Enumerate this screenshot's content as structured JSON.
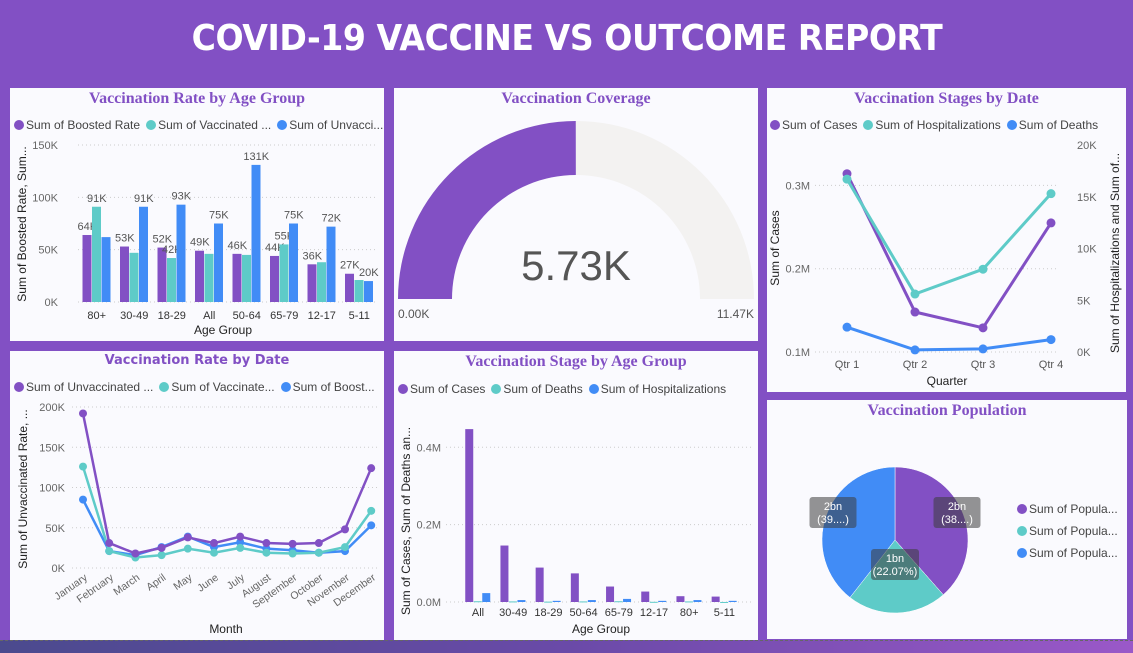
{
  "header": {
    "title": "COVID-19 VACCINE VS OUTCOME REPORT"
  },
  "colors": {
    "purple": "#8250c4",
    "teal": "#5ecbc8",
    "blue": "#418cf6",
    "track": "#f3f2f1",
    "background": "#8250c4"
  },
  "chart_data": [
    {
      "id": "rate-by-age",
      "type": "bar",
      "title": "Vaccination Rate by Age Group",
      "xlabel": "Age Group",
      "ylabel": "Sum of Boosted Rate, Sum...",
      "ylim": [
        0,
        150000
      ],
      "yticks": [
        "0K",
        "50K",
        "100K",
        "150K"
      ],
      "categories": [
        "80+",
        "30-49",
        "18-29",
        "All",
        "50-64",
        "65-79",
        "12-17",
        "5-11"
      ],
      "legend": [
        "Sum of Boosted Rate",
        "Sum of Vaccinated ...",
        "Sum of Unvacci..."
      ],
      "series": [
        {
          "name": "Sum of Boosted Rate",
          "color": "#8250c4",
          "values": [
            64000,
            53000,
            52000,
            49000,
            46000,
            44000,
            36000,
            27000
          ],
          "labels": [
            "64K",
            "53K",
            "52K",
            "49K",
            "46K",
            "44K",
            "36K",
            "27K"
          ]
        },
        {
          "name": "Sum of Vaccinated Rate",
          "color": "#5ecbc8",
          "values": [
            91000,
            47000,
            42000,
            46000,
            45000,
            55000,
            38000,
            21000
          ],
          "labels": [
            "91K",
            "",
            "42K",
            "",
            "",
            "55K",
            "",
            ""
          ]
        },
        {
          "name": "Sum of Unvaccinated Rate",
          "color": "#418cf6",
          "values": [
            62000,
            91000,
            93000,
            75000,
            131000,
            75000,
            72000,
            20000
          ],
          "labels": [
            "",
            "91K",
            "93K",
            "75K",
            "131K",
            "75K",
            "72K",
            "20K"
          ]
        }
      ]
    },
    {
      "id": "coverage-gauge",
      "type": "gauge",
      "title": "Vaccination Coverage",
      "value": 5730,
      "value_label": "5.73K",
      "min": 0,
      "max": 11470,
      "min_label": "0.00K",
      "max_label": "11.47K"
    },
    {
      "id": "stages-by-date",
      "type": "line",
      "title": "Vaccination Stages by Date",
      "xlabel": "Quarter",
      "ylabel": "Sum of Cases",
      "y2label": "Sum of Hospitalizations and Sum of...",
      "categories": [
        "Qtr 1",
        "Qtr 2",
        "Qtr 3",
        "Qtr 4"
      ],
      "ylim": [
        100000,
        350000
      ],
      "yticks": [
        "0.1M",
        "0.2M",
        "0.3M"
      ],
      "y2lim": [
        0,
        20000
      ],
      "y2ticks": [
        "0K",
        "5K",
        "10K",
        "15K",
        "20K"
      ],
      "legend": [
        "Sum of Cases",
        "Sum of Hospitalizations",
        "Sum of Deaths"
      ],
      "series": [
        {
          "name": "Sum of Cases",
          "axis": "left",
          "color": "#8250c4",
          "values": [
            314000,
            148000,
            129000,
            255000
          ]
        },
        {
          "name": "Sum of Hospitalizations",
          "axis": "right",
          "color": "#5ecbc8",
          "values": [
            16700,
            5600,
            8000,
            15300
          ]
        },
        {
          "name": "Sum of Deaths",
          "axis": "right",
          "color": "#418cf6",
          "values": [
            2400,
            200,
            300,
            1200
          ]
        }
      ]
    },
    {
      "id": "rate-by-date",
      "type": "line",
      "title": "Vaccination Rate by Date",
      "xlabel": "Month",
      "ylabel": "Sum of Unvaccinated Rate, ...",
      "ylim": [
        0,
        200000
      ],
      "yticks": [
        "0K",
        "50K",
        "100K",
        "150K",
        "200K"
      ],
      "categories": [
        "January",
        "February",
        "March",
        "April",
        "May",
        "June",
        "July",
        "August",
        "September",
        "October",
        "November",
        "December"
      ],
      "legend": [
        "Sum of Unvaccinated ...",
        "Sum of Vaccinate...",
        "Sum of Boost..."
      ],
      "series": [
        {
          "name": "Sum of Unvaccinated Rate",
          "color": "#8250c4",
          "values": [
            192000,
            31000,
            18000,
            25000,
            38000,
            31000,
            39000,
            31000,
            30000,
            31000,
            48000,
            124000
          ]
        },
        {
          "name": "Sum of Vaccinated Rate",
          "color": "#5ecbc8",
          "values": [
            126000,
            21000,
            13000,
            16000,
            24000,
            19000,
            25000,
            19000,
            18000,
            19000,
            26000,
            71000
          ]
        },
        {
          "name": "Sum of Boosted Rate",
          "color": "#418cf6",
          "values": [
            85000,
            21000,
            16000,
            26000,
            39000,
            26000,
            32000,
            24000,
            22000,
            19000,
            21000,
            53000
          ]
        }
      ]
    },
    {
      "id": "stage-by-age",
      "type": "bar",
      "title": "Vaccination Stage by Age Group",
      "xlabel": "Age Group",
      "ylabel": "Sum of Cases, Sum of Deaths an...",
      "ylim": [
        0,
        470000
      ],
      "yticks": [
        "0.0M",
        "0.2M",
        "0.4M"
      ],
      "categories": [
        "All",
        "30-49",
        "18-29",
        "50-64",
        "65-79",
        "12-17",
        "80+",
        "5-11"
      ],
      "legend": [
        "Sum of Cases",
        "Sum of Deaths",
        "Sum of Hospitalizations"
      ],
      "series": [
        {
          "name": "Sum of Cases",
          "color": "#8250c4",
          "values": [
            447000,
            146000,
            89000,
            74000,
            40000,
            27000,
            15000,
            14000
          ]
        },
        {
          "name": "Sum of Deaths",
          "color": "#5ecbc8",
          "values": [
            2000,
            1500,
            1000,
            1500,
            2000,
            500,
            1500,
            100
          ]
        },
        {
          "name": "Sum of Hospitalizations",
          "color": "#418cf6",
          "values": [
            23000,
            5000,
            3000,
            5000,
            8000,
            3000,
            5000,
            3000
          ]
        }
      ]
    },
    {
      "id": "population-pie",
      "type": "pie",
      "title": "Vaccination Population",
      "legend": [
        "Sum of Popula...",
        "Sum of Popula...",
        "Sum of Popula..."
      ],
      "slices": [
        {
          "name": "Sum of Population (purple)",
          "color": "#8250c4",
          "percent": 38.5,
          "label": "2bn",
          "pct_label": "(38....)"
        },
        {
          "name": "Sum of Population (teal)",
          "color": "#5ecbc8",
          "percent": 22.07,
          "label": "1bn",
          "pct_label": "(22.07%)"
        },
        {
          "name": "Sum of Population (blue)",
          "color": "#418cf6",
          "percent": 39.43,
          "label": "2bn",
          "pct_label": "(39....)"
        }
      ]
    }
  ]
}
